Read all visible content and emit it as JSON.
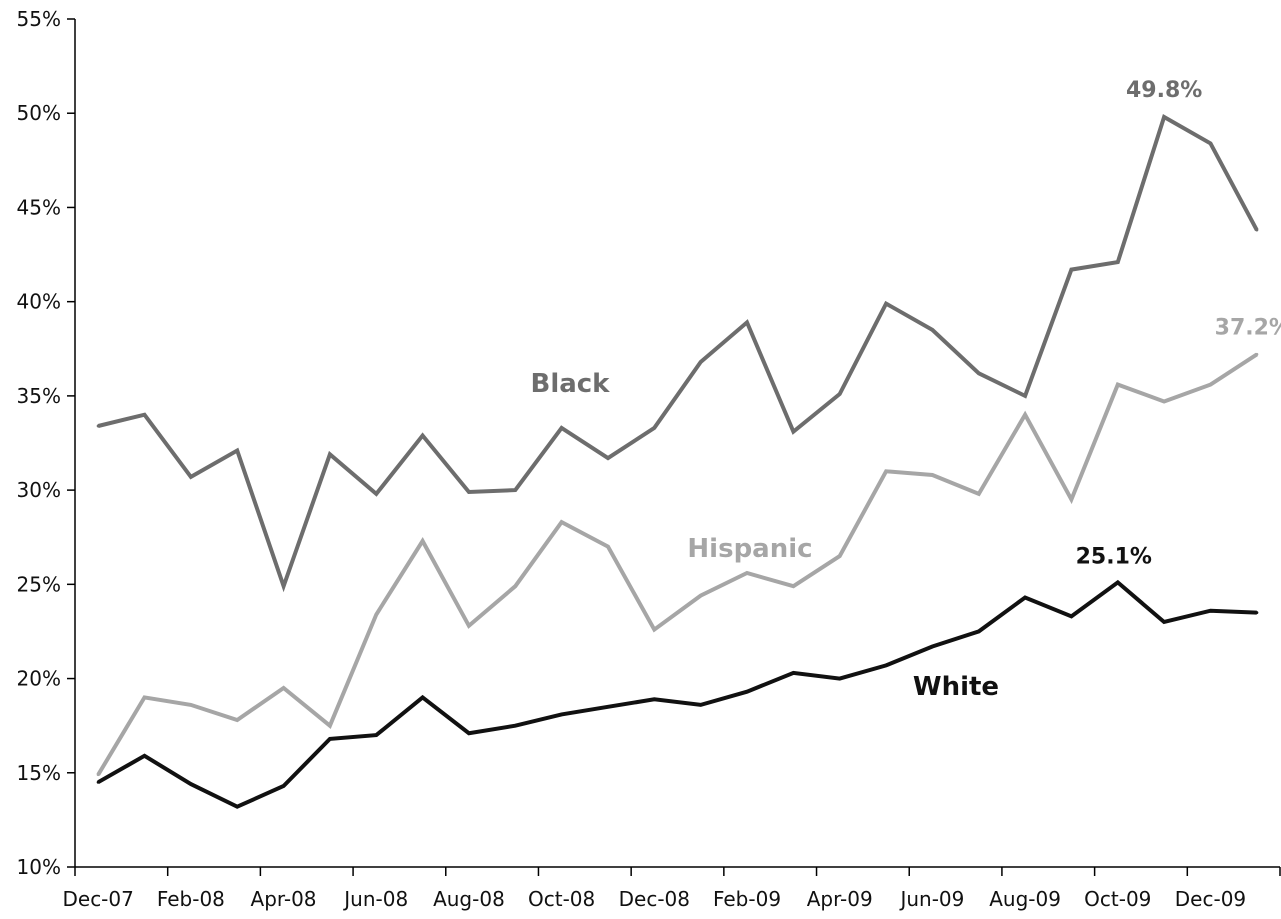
{
  "chart_data": {
    "type": "line",
    "title": "",
    "xlabel": "",
    "ylabel": "",
    "x": [
      "Dec-07",
      "Jan-08",
      "Feb-08",
      "Mar-08",
      "Apr-08",
      "May-08",
      "Jun-08",
      "Jul-08",
      "Aug-08",
      "Sep-08",
      "Oct-08",
      "Nov-08",
      "Dec-08",
      "Jan-09",
      "Feb-09",
      "Mar-09",
      "Apr-09",
      "May-09",
      "Jun-09",
      "Jul-09",
      "Aug-09",
      "Sep-09",
      "Oct-09",
      "Nov-09",
      "Dec-09",
      "Jan-10"
    ],
    "x_tick_labels": [
      "Dec-07",
      "Feb-08",
      "Apr-08",
      "Jun-08",
      "Aug-08",
      "Oct-08",
      "Dec-08",
      "Feb-09",
      "Apr-09",
      "Jun-09",
      "Aug-09",
      "Oct-09",
      "Dec-09"
    ],
    "y_tick_labels": [
      "10%",
      "15%",
      "20%",
      "25%",
      "30%",
      "35%",
      "40%",
      "45%",
      "50%",
      "55%"
    ],
    "ylim": [
      10,
      55
    ],
    "grid": false,
    "series": [
      {
        "name": "Black",
        "color": "#6d6d6d",
        "values": [
          33.4,
          34.0,
          30.7,
          32.1,
          24.9,
          31.9,
          29.8,
          32.9,
          29.9,
          30.0,
          33.3,
          31.7,
          33.3,
          36.8,
          38.9,
          33.1,
          35.1,
          39.9,
          38.5,
          36.2,
          35.0,
          41.7,
          42.1,
          49.8,
          48.4,
          43.8
        ],
        "end_label": "49.8%"
      },
      {
        "name": "Hispanic",
        "color": "#a6a6a6",
        "values": [
          14.9,
          19.0,
          18.6,
          17.8,
          19.5,
          17.5,
          23.4,
          27.3,
          22.8,
          24.9,
          28.3,
          27.0,
          22.6,
          24.4,
          25.6,
          24.9,
          26.5,
          31.0,
          30.8,
          29.8,
          34.0,
          29.5,
          35.6,
          34.7,
          35.6,
          37.2
        ],
        "end_label": "37.2%"
      },
      {
        "name": "White",
        "color": "#111111",
        "values": [
          14.5,
          15.9,
          14.4,
          13.2,
          14.3,
          16.8,
          17.0,
          19.0,
          17.1,
          17.5,
          18.1,
          18.5,
          18.9,
          18.6,
          19.3,
          20.3,
          20.0,
          20.7,
          21.7,
          22.5,
          24.3,
          23.3,
          25.1,
          23.0,
          23.6,
          23.5
        ],
        "end_label": "25.1%"
      }
    ]
  }
}
